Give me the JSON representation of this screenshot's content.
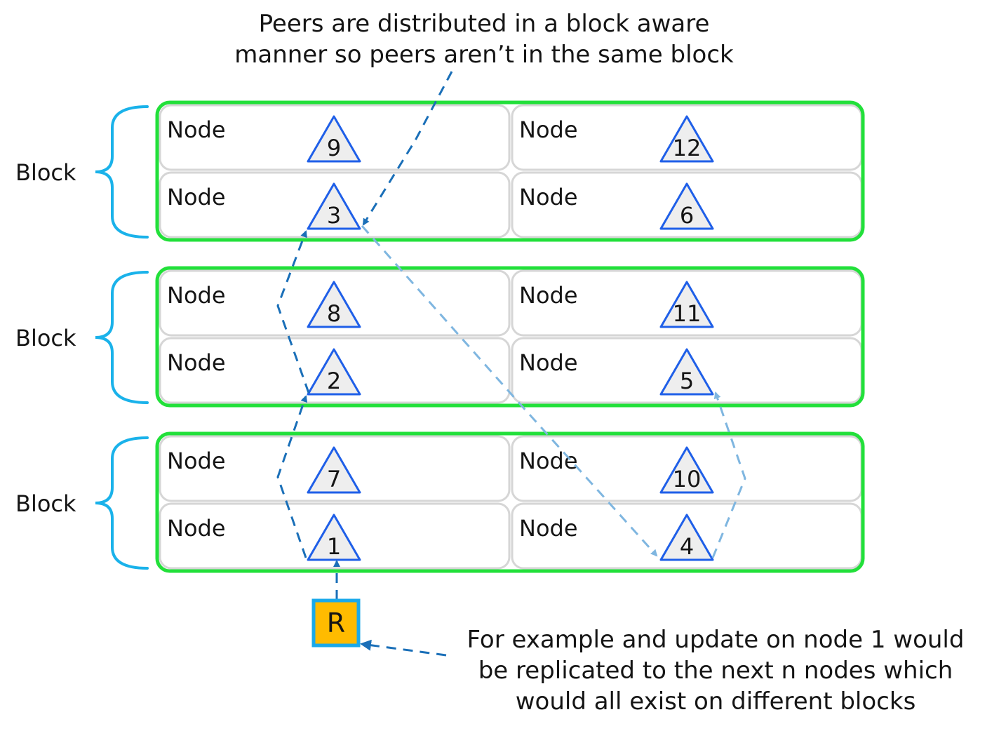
{
  "captions": {
    "top": [
      "Peers are distributed in a block aware",
      "manner so peers aren’t in the same block"
    ],
    "bottom": [
      "For example and update on node 1 would",
      "be replicated to the next n nodes which",
      "would all exist on different blocks"
    ]
  },
  "block_label": "Block",
  "node_label": "Node",
  "replica_label": "R",
  "blocks": [
    {
      "rows": [
        {
          "left": "9",
          "right": "12"
        },
        {
          "left": "3",
          "right": "6"
        }
      ]
    },
    {
      "rows": [
        {
          "left": "8",
          "right": "11"
        },
        {
          "left": "2",
          "right": "5"
        }
      ]
    },
    {
      "rows": [
        {
          "left": "7",
          "right": "10"
        },
        {
          "left": "1",
          "right": "4"
        }
      ]
    }
  ],
  "colors": {
    "block_border": "#22e03a",
    "brace": "#1ab2ea",
    "triangle_stroke": "#1f5fe8",
    "triangle_fill": "#eeeeee",
    "arrow_dark": "#1a6fb8",
    "arrow_light": "#7fb6e0",
    "replica_fill": "#ffbb00",
    "replica_border": "#1aa9ea"
  }
}
